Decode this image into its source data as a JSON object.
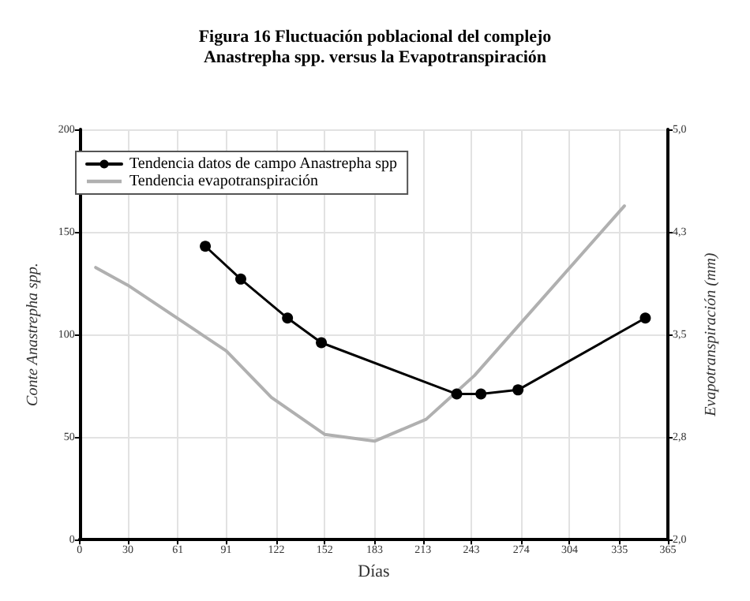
{
  "chart_data": {
    "type": "line",
    "title": "Figura 16 Fluctuación poblacional del complejo\nAnastrepha spp. versus la Evapotranspiración",
    "xlabel": "Días",
    "ylabel": "Conte Anastrepha spp.",
    "y2label": "Evapotranspiración (mm)",
    "xlim": [
      0,
      365
    ],
    "xticks": [
      0,
      30,
      61,
      91,
      122,
      152,
      183,
      213,
      243,
      274,
      304,
      335,
      365
    ],
    "ylim": [
      0,
      200
    ],
    "yticks": [
      0,
      50,
      100,
      150,
      200
    ],
    "y2lim": [
      2,
      5
    ],
    "y2ticks": [
      {
        "value": 2,
        "label": "2,0"
      },
      {
        "value": 2.75,
        "label": "2,8"
      },
      {
        "value": 3.5,
        "label": "3,5"
      },
      {
        "value": 4.25,
        "label": "4,3"
      },
      {
        "value": 5,
        "label": "5,0"
      }
    ],
    "grid": true,
    "legend": "top left",
    "series": [
      {
        "name": "Tendencia datos de campo Anastrepha spp",
        "color": "#000000",
        "marker": "circle",
        "x": [
          78,
          100,
          129,
          150,
          234,
          249,
          272,
          351
        ],
        "values": [
          143,
          127,
          108,
          96,
          71,
          71,
          73,
          108
        ]
      },
      {
        "name": "Tendencia evapotranspiración",
        "color": "#b0b0b0",
        "marker": "none",
        "axis": "y2",
        "x": [
          10,
          30,
          91,
          119,
          152,
          183,
          215,
          245,
          338
        ],
        "values": [
          3.99,
          3.86,
          3.38,
          3.04,
          2.77,
          2.72,
          2.88,
          3.2,
          4.44
        ]
      }
    ]
  }
}
